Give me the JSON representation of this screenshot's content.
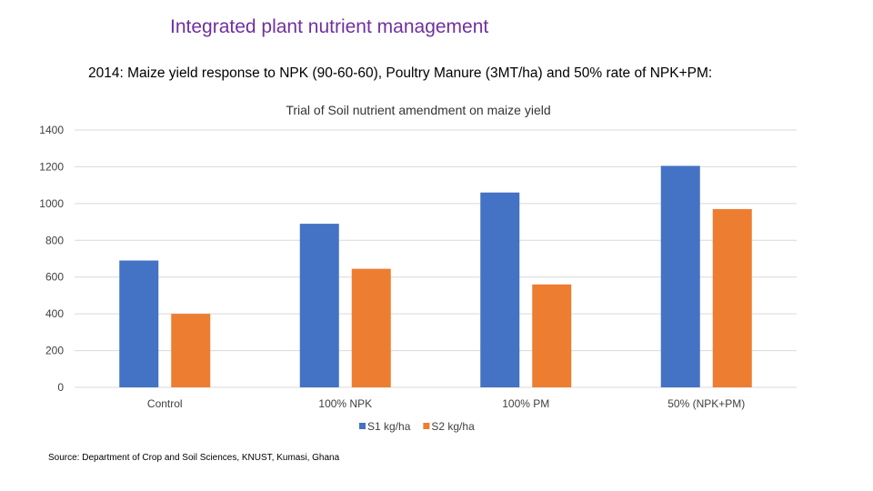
{
  "slide": {
    "title": "Integrated plant nutrient management",
    "subtitle": "2014: Maize yield response to NPK (90-60-60), Poultry Manure (3MT/ha) and 50% rate of NPK+PM:",
    "source": "Source: Department of Crop and Soil Sciences, KNUST, Kumasi, Ghana"
  },
  "chart_data": {
    "type": "bar",
    "title": "Trial of Soil nutrient amendment on maize yield",
    "categories": [
      "Control",
      "100% NPK",
      "100% PM",
      "50% (NPK+PM)"
    ],
    "series": [
      {
        "name": "S1 kg/ha",
        "color": "#4472c4",
        "values": [
          690,
          890,
          1060,
          1205
        ]
      },
      {
        "name": "S2 kg/ha",
        "color": "#ed7d31",
        "values": [
          400,
          645,
          560,
          970
        ]
      }
    ],
    "ylim": [
      0,
      1400
    ],
    "yticks": [
      0,
      200,
      400,
      600,
      800,
      1000,
      1200,
      1400
    ],
    "xlabel": "",
    "ylabel": "",
    "grid": true,
    "legend": "bottom"
  }
}
